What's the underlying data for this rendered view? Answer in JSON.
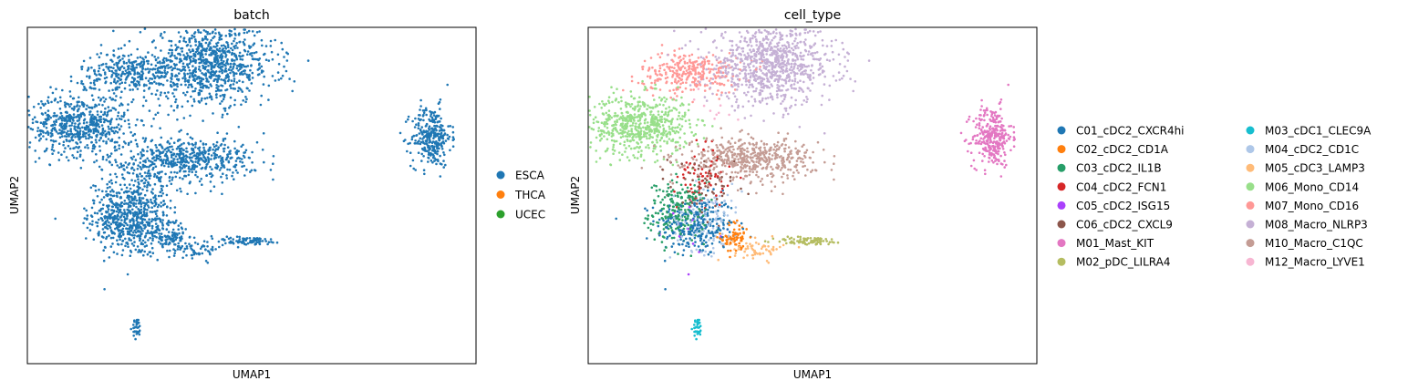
{
  "chart_data": [
    {
      "type": "scatter",
      "title": "batch",
      "xlabel": "UMAP1",
      "ylabel": "UMAP2",
      "xlim": [
        -8,
        17
      ],
      "ylim": [
        -10,
        10
      ],
      "grid": false,
      "legend_placement": "right",
      "categories": [
        "ESCA",
        "THCA",
        "UCEC"
      ],
      "colors": [
        "#1f77b4",
        "#ff7f0e",
        "#2ca02c"
      ],
      "clusters": [
        {
          "name": "C01_cDC2_CXCR4hi",
          "x": -2.0,
          "y": -1.8,
          "sx": 1.1,
          "sy": 0.9,
          "n": 260
        },
        {
          "name": "C02_cDC2_CD1A",
          "x": 0.2,
          "y": -2.5,
          "sx": 0.4,
          "sy": 0.5,
          "n": 70
        },
        {
          "name": "C03_cDC2_IL1B",
          "x": -3.0,
          "y": -1.0,
          "sx": 0.8,
          "sy": 0.9,
          "n": 220
        },
        {
          "name": "C04_cDC2_FCN1",
          "x": -1.6,
          "y": 1.2,
          "sx": 0.7,
          "sy": 1.0,
          "n": 70
        },
        {
          "name": "C05_cDC2_ISG15",
          "x": -2.0,
          "y": -1.6,
          "sx": 0.8,
          "sy": 0.8,
          "n": 15
        },
        {
          "name": "C06_cDC2_CXCL9",
          "x": -1.7,
          "y": 0.3,
          "sx": 0.9,
          "sy": 1.1,
          "n": 70
        },
        {
          "name": "M01_Mast_KIT",
          "x": 14.5,
          "y": 3.5,
          "sx": 0.55,
          "sy": 0.9,
          "n": 300
        },
        {
          "name": "M02_pDC_LILRA4",
          "x": 4.3,
          "y": -2.7,
          "sx": 1.0,
          "sy": 0.12,
          "n": 80
        },
        {
          "name": "M03_cDC1_CLEC9A",
          "x": -1.9,
          "y": -7.9,
          "sx": 0.12,
          "sy": 0.3,
          "n": 35
        },
        {
          "name": "M04_cDC2_CD1C",
          "x": -1.4,
          "y": -1.3,
          "sx": 1.0,
          "sy": 1.0,
          "n": 120
        },
        {
          "name": "M05_cDC3_LAMP3",
          "x": 1.5,
          "y": -3.2,
          "sx": 0.7,
          "sy": 0.3,
          "n": 60
        },
        {
          "name": "M06_Mono_CD14",
          "x": -5.1,
          "y": 4.2,
          "sx": 1.4,
          "sy": 0.9,
          "n": 600
        },
        {
          "name": "M07_Mono_CD16",
          "x": -2.3,
          "y": 7.3,
          "sx": 1.4,
          "sy": 0.6,
          "n": 300
        },
        {
          "name": "M08_Macro_NLRP3",
          "x": 2.2,
          "y": 7.8,
          "sx": 1.8,
          "sy": 1.2,
          "n": 900
        },
        {
          "name": "M10_Macro_C1QC",
          "x": 1.0,
          "y": 2.2,
          "sx": 1.8,
          "sy": 0.6,
          "n": 500
        },
        {
          "name": "M12_Macro_LYVE1",
          "x": -1.0,
          "y": 5.0,
          "sx": 0.8,
          "sy": 0.8,
          "n": 10
        }
      ]
    },
    {
      "type": "scatter",
      "title": "cell_type",
      "xlabel": "UMAP1",
      "ylabel": "UMAP2",
      "xlim": [
        -8,
        17
      ],
      "ylim": [
        -10,
        10
      ],
      "grid": false,
      "legend_placement": "right",
      "categories": [
        "C01_cDC2_CXCR4hi",
        "C02_cDC2_CD1A",
        "C03_cDC2_IL1B",
        "C04_cDC2_FCN1",
        "C05_cDC2_ISG15",
        "C06_cDC2_CXCL9",
        "M01_Mast_KIT",
        "M02_pDC_LILRA4",
        "M03_cDC1_CLEC9A",
        "M04_cDC2_CD1C",
        "M05_cDC3_LAMP3",
        "M06_Mono_CD14",
        "M07_Mono_CD16",
        "M08_Macro_NLRP3",
        "M10_Macro_C1QC",
        "M12_Macro_LYVE1"
      ],
      "colors": [
        "#1f77b4",
        "#ff7f0e",
        "#279e68",
        "#d62728",
        "#aa40fc",
        "#8c564b",
        "#e377c2",
        "#b5bd61",
        "#17becf",
        "#aec7e8",
        "#ffbb78",
        "#98df8a",
        "#ff9896",
        "#c5b0d5",
        "#c49c94",
        "#f7b6d2"
      ]
    }
  ]
}
